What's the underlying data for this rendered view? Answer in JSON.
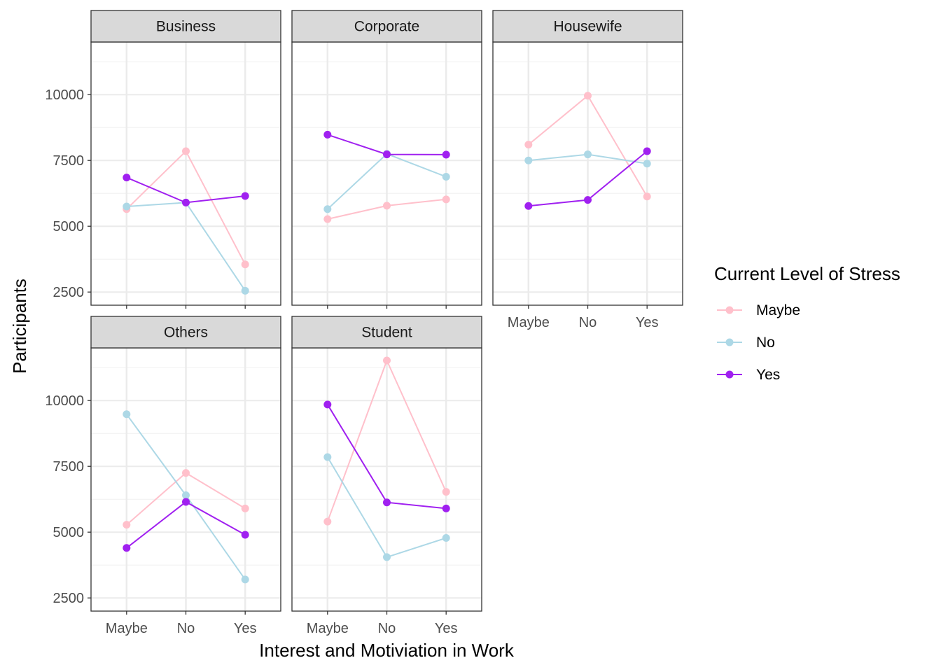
{
  "chart_data": {
    "type": "line",
    "xlabel": "Interest and Motiviation in Work",
    "ylabel": "Participants",
    "categories": [
      "Maybe",
      "No",
      "Yes"
    ],
    "ylim": [
      2000,
      12000
    ],
    "yticks": [
      2500,
      5000,
      7500,
      10000
    ],
    "grid": true,
    "legend": {
      "title": "Current Level of Stress",
      "placement": "right"
    },
    "series_styles": [
      {
        "name": "Maybe",
        "color": "#FFC0CB"
      },
      {
        "name": "No",
        "color": "#ADD8E6"
      },
      {
        "name": "Yes",
        "color": "#A020F0"
      }
    ],
    "panels": [
      {
        "title": "Business",
        "series": [
          {
            "name": "Maybe",
            "values": [
              5650,
              7850,
              3550
            ]
          },
          {
            "name": "No",
            "values": [
              5750,
              5900,
              2550
            ]
          },
          {
            "name": "Yes",
            "values": [
              6850,
              5900,
              6150
            ]
          }
        ]
      },
      {
        "title": "Corporate",
        "series": [
          {
            "name": "Maybe",
            "values": [
              5270,
              5780,
              6020
            ]
          },
          {
            "name": "No",
            "values": [
              5650,
              7750,
              6880
            ]
          },
          {
            "name": "Yes",
            "values": [
              8480,
              7730,
              7720
            ]
          }
        ]
      },
      {
        "title": "Housewife",
        "series": [
          {
            "name": "Maybe",
            "values": [
              8100,
              9960,
              6130
            ]
          },
          {
            "name": "No",
            "values": [
              7500,
              7730,
              7380
            ]
          },
          {
            "name": "Yes",
            "values": [
              5770,
              6000,
              7850
            ]
          }
        ]
      },
      {
        "title": "Others",
        "series": [
          {
            "name": "Maybe",
            "values": [
              5280,
              7250,
              5900
            ]
          },
          {
            "name": "No",
            "values": [
              9480,
              6400,
              3200
            ]
          },
          {
            "name": "Yes",
            "values": [
              4400,
              6150,
              4900
            ]
          }
        ]
      },
      {
        "title": "Student",
        "series": [
          {
            "name": "Maybe",
            "values": [
              5400,
              11520,
              6530
            ]
          },
          {
            "name": "No",
            "values": [
              7850,
              4050,
              4780
            ]
          },
          {
            "name": "Yes",
            "values": [
              9850,
              6130,
              5900
            ]
          }
        ]
      }
    ]
  }
}
